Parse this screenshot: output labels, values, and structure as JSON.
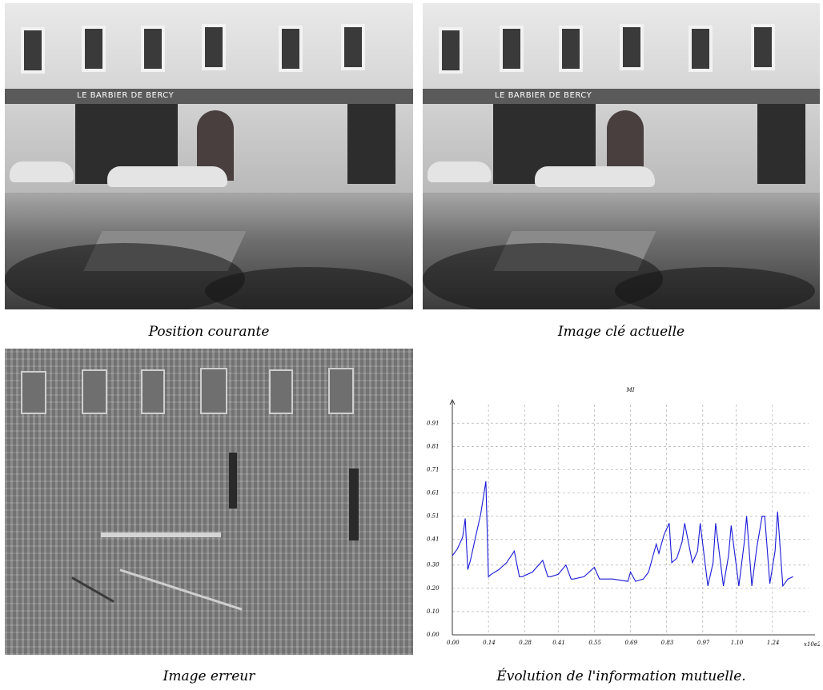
{
  "captions": {
    "current": "Position courante",
    "keyframe": "Image clé actuelle",
    "error": "Image erreur",
    "mi": "Évolution de l'information mutuelle."
  },
  "photo_signs": {
    "shop_name": "LE BARBIER DE BERCY"
  },
  "chart_data": {
    "type": "line",
    "title": "MI",
    "xlabel": "x10e2",
    "ylabel": "",
    "xlim": [
      0,
      1.38
    ],
    "ylim": [
      0,
      0.99
    ],
    "x_ticks": [
      "0.00",
      "0.14",
      "0.28",
      "0.41",
      "0.55",
      "0.69",
      "0.83",
      "0.97",
      "1.10",
      "1.24"
    ],
    "y_ticks": [
      "0.00",
      "0.10",
      "0.20",
      "0.30",
      "0.41",
      "0.51",
      "0.61",
      "0.71",
      "0.81",
      "0.91"
    ],
    "grid": true,
    "series": [
      {
        "color": "#1a1ad6",
        "x": [
          0.0,
          0.02,
          0.04,
          0.05,
          0.06,
          0.07,
          0.09,
          0.11,
          0.13,
          0.14,
          0.15,
          0.18,
          0.21,
          0.24,
          0.26,
          0.27,
          0.31,
          0.35,
          0.37,
          0.38,
          0.41,
          0.44,
          0.46,
          0.47,
          0.51,
          0.55,
          0.57,
          0.58,
          0.62,
          0.68,
          0.69,
          0.71,
          0.74,
          0.76,
          0.79,
          0.8,
          0.82,
          0.84,
          0.85,
          0.87,
          0.89,
          0.9,
          0.93,
          0.95,
          0.96,
          0.99,
          1.01,
          1.02,
          1.05,
          1.07,
          1.08,
          1.11,
          1.13,
          1.14,
          1.16,
          1.18,
          1.2,
          1.21,
          1.23,
          1.25,
          1.26,
          1.28,
          1.3,
          1.32
        ],
        "y": [
          0.34,
          0.37,
          0.42,
          0.5,
          0.28,
          0.32,
          0.42,
          0.52,
          0.66,
          0.25,
          0.26,
          0.28,
          0.31,
          0.36,
          0.25,
          0.25,
          0.27,
          0.32,
          0.25,
          0.25,
          0.26,
          0.3,
          0.24,
          0.24,
          0.25,
          0.29,
          0.24,
          0.24,
          0.24,
          0.23,
          0.27,
          0.23,
          0.24,
          0.27,
          0.39,
          0.35,
          0.43,
          0.48,
          0.31,
          0.33,
          0.4,
          0.48,
          0.31,
          0.36,
          0.48,
          0.21,
          0.31,
          0.48,
          0.21,
          0.34,
          0.47,
          0.21,
          0.39,
          0.51,
          0.21,
          0.38,
          0.51,
          0.51,
          0.22,
          0.36,
          0.53,
          0.21,
          0.24,
          0.25
        ]
      }
    ]
  }
}
